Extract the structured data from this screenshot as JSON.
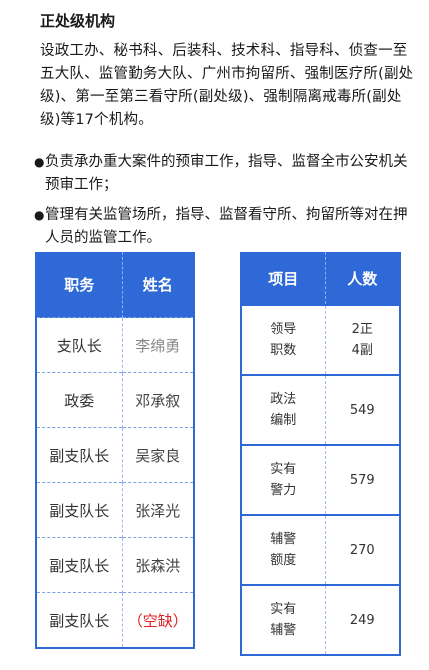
{
  "heading": "正处级机构",
  "intro": "设政工办、秘书科、后装科、技术科、指导科、侦查一至五大队、监管勤务大队、广州市拘留所、强制医疗所(副处级)、第一至第三看守所(副处级)、强制隔离戒毒所(副处级)等17个机构。",
  "bullets": [
    {
      "symbol": "●",
      "text": "负责承办重大案件的预审工作，指导、监督全市公安机关预审工作；"
    },
    {
      "symbol": "●",
      "text": "管理有关监管场所，指导、监督看守所、拘留所等对在押人员的监管工作。"
    }
  ],
  "leaders_table": {
    "headers": {
      "position": "职务",
      "name": "姓名"
    },
    "rows": [
      {
        "position": "支队长",
        "name": "李绵勇"
      },
      {
        "position": "政委",
        "name": "邓承叙"
      },
      {
        "position": "副支队长",
        "name": "吴家良"
      },
      {
        "position": "副支队长",
        "name": "张泽光"
      },
      {
        "position": "副支队长",
        "name": "张森洪"
      },
      {
        "position": "副支队长",
        "name": "（空缺）"
      }
    ]
  },
  "staff_table": {
    "headers": {
      "item": "项目",
      "count": "人数"
    },
    "rows": [
      {
        "item_line1": "领导",
        "item_line2": "职数",
        "count_line1": "2正",
        "count_line2": "4副"
      },
      {
        "item_line1": "政法",
        "item_line2": "编制",
        "count_line1": "549",
        "count_line2": ""
      },
      {
        "item_line1": "实有",
        "item_line2": "警力",
        "count_line1": "579",
        "count_line2": ""
      },
      {
        "item_line1": "辅警",
        "item_line2": "额度",
        "count_line1": "270",
        "count_line2": ""
      },
      {
        "item_line1": "实有",
        "item_line2": "辅警",
        "count_line1": "249",
        "count_line2": ""
      }
    ]
  },
  "colors": {
    "header_blue": "#2f69d7",
    "vacant_red": "#e02020",
    "muted_gray": "#888888"
  }
}
